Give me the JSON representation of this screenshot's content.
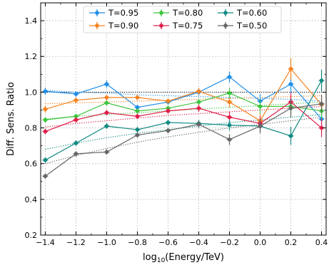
{
  "chart_data": {
    "type": "line",
    "xlabel_main": "log",
    "xlabel_sub": "10",
    "xlabel_rest": "(Energy/TeV)",
    "ylabel": "Diff. Sens. Ratio",
    "xlim": [
      -1.43,
      0.43
    ],
    "ylim": [
      0.2,
      1.5
    ],
    "xticks": [
      -1.4,
      -1.2,
      -1.0,
      -0.8,
      -0.6,
      -0.4,
      -0.2,
      0.0,
      0.2,
      0.4
    ],
    "xtick_labels": [
      "−1.4",
      "−1.2",
      "−1.0",
      "−0.8",
      "−0.6",
      "−0.4",
      "−0.2",
      "0.0",
      "0.2",
      "0.4"
    ],
    "yticks": [
      0.2,
      0.4,
      0.6,
      0.8,
      1.0,
      1.2,
      1.4
    ],
    "ytick_labels": [
      "0.2",
      "0.4",
      "0.6",
      "0.8",
      "1.0",
      "1.2",
      "1.4"
    ],
    "grid": true,
    "reference_line": 1.0,
    "legend_position": "top-center",
    "x": [
      -1.4,
      -1.2,
      -1.0,
      -0.8,
      -0.6,
      -0.4,
      -0.2,
      0.0,
      0.2,
      0.4
    ],
    "series": [
      {
        "name": "T=0.95",
        "color": "#1f8ee8",
        "values": [
          1.005,
          0.99,
          1.045,
          0.915,
          0.945,
          1.0,
          1.085,
          0.95,
          1.045,
          0.85
        ],
        "errors": [
          0.02,
          0.015,
          0.02,
          0.015,
          0.015,
          0.02,
          0.03,
          0.04,
          0.05,
          0.05
        ],
        "trend": [
          1.01,
          1.0,
          0.995,
          0.985,
          0.98,
          0.975,
          0.97,
          0.965,
          0.96,
          0.95
        ]
      },
      {
        "name": "T=0.90",
        "color": "#f5821f",
        "values": [
          0.905,
          0.955,
          0.97,
          0.97,
          0.95,
          1.005,
          0.945,
          0.84,
          1.13,
          0.93
        ],
        "errors": [
          0.02,
          0.015,
          0.015,
          0.015,
          0.015,
          0.02,
          0.03,
          0.04,
          0.06,
          0.05
        ],
        "trend": [
          0.935,
          0.94,
          0.945,
          0.95,
          0.955,
          0.96,
          0.965,
          0.97,
          0.975,
          0.98
        ]
      },
      {
        "name": "T=0.80",
        "color": "#3ec53e",
        "values": [
          0.845,
          0.865,
          0.94,
          0.895,
          0.91,
          0.945,
          0.995,
          0.92,
          0.92,
          0.895
        ],
        "errors": [
          0.015,
          0.015,
          0.015,
          0.015,
          0.015,
          0.02,
          0.03,
          0.04,
          0.05,
          0.05
        ],
        "trend": [
          0.85,
          0.865,
          0.875,
          0.885,
          0.895,
          0.905,
          0.915,
          0.925,
          0.935,
          0.945
        ]
      },
      {
        "name": "T=0.75",
        "color": "#e0204a",
        "values": [
          0.78,
          0.845,
          0.885,
          0.865,
          0.895,
          0.91,
          0.86,
          0.825,
          0.945,
          0.8
        ],
        "errors": [
          0.015,
          0.015,
          0.015,
          0.015,
          0.015,
          0.02,
          0.03,
          0.04,
          0.05,
          0.05
        ],
        "trend": [
          0.805,
          0.825,
          0.84,
          0.855,
          0.87,
          0.88,
          0.89,
          0.9,
          0.91,
          0.92
        ]
      },
      {
        "name": "T=0.60",
        "color": "#0f8a82",
        "values": [
          0.62,
          0.715,
          0.81,
          0.79,
          0.83,
          0.825,
          0.815,
          0.81,
          0.755,
          1.065
        ],
        "errors": [
          0.015,
          0.015,
          0.015,
          0.015,
          0.015,
          0.02,
          0.03,
          0.04,
          0.05,
          0.06
        ],
        "trend": [
          0.68,
          0.715,
          0.745,
          0.77,
          0.79,
          0.81,
          0.83,
          0.845,
          0.86,
          0.875
        ]
      },
      {
        "name": "T=0.50",
        "color": "#666666",
        "values": [
          0.53,
          0.655,
          0.665,
          0.76,
          0.785,
          0.82,
          0.735,
          0.81,
          0.91,
          0.935
        ],
        "errors": [
          0.015,
          0.015,
          0.015,
          0.015,
          0.015,
          0.02,
          0.03,
          0.04,
          0.05,
          0.05
        ],
        "trend": [
          0.6,
          0.645,
          0.685,
          0.72,
          0.75,
          0.775,
          0.8,
          0.82,
          0.84,
          0.86
        ]
      }
    ]
  }
}
